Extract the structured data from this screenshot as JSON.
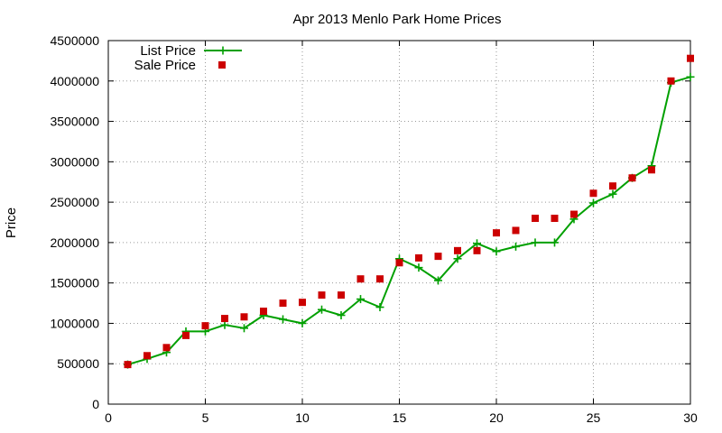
{
  "chart_data": {
    "type": "line",
    "title": "Apr 2013 Menlo Park Home Prices",
    "xlabel": "",
    "ylabel": "Price",
    "xlim": [
      0,
      30
    ],
    "ylim": [
      0,
      4500000
    ],
    "x_ticks": [
      0,
      5,
      10,
      15,
      20,
      25,
      30
    ],
    "y_ticks": [
      0,
      500000,
      1000000,
      1500000,
      2000000,
      2500000,
      3000000,
      3500000,
      4000000,
      4500000
    ],
    "grid": true,
    "legend_position": "top-left",
    "x": [
      1,
      2,
      3,
      4,
      5,
      6,
      7,
      8,
      9,
      10,
      11,
      12,
      13,
      14,
      15,
      16,
      17,
      18,
      19,
      20,
      21,
      22,
      23,
      24,
      25,
      26,
      27,
      28,
      29,
      30
    ],
    "series": [
      {
        "name": "List Price",
        "style": "line-plus",
        "color": "#00a000",
        "values": [
          490000,
          560000,
          640000,
          900000,
          900000,
          980000,
          940000,
          1100000,
          1050000,
          1000000,
          1170000,
          1100000,
          1300000,
          1200000,
          1800000,
          1690000,
          1530000,
          1800000,
          1990000,
          1890000,
          1950000,
          2000000,
          2000000,
          2290000,
          2490000,
          2600000,
          2800000,
          2950000,
          3980000,
          4050000
        ]
      },
      {
        "name": "Sale Price",
        "style": "square",
        "color": "#cc0000",
        "values": [
          490000,
          600000,
          700000,
          850000,
          970000,
          1060000,
          1080000,
          1150000,
          1250000,
          1260000,
          1350000,
          1350000,
          1550000,
          1550000,
          1750000,
          1810000,
          1830000,
          1900000,
          1900000,
          2120000,
          2150000,
          2300000,
          2300000,
          2350000,
          2610000,
          2700000,
          2800000,
          2900000,
          4000000,
          4280000
        ]
      }
    ]
  }
}
